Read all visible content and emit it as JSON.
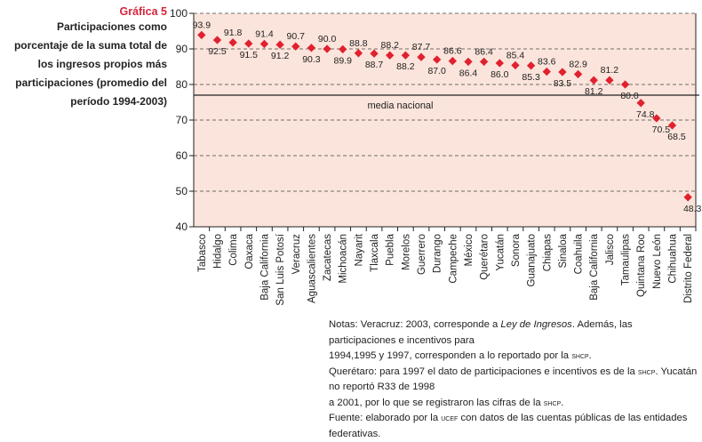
{
  "figure_label": "Gráfica 5",
  "chart_data": {
    "type": "scatter",
    "title": "Participaciones como porcentaje de la suma total de los ingresos propios más participaciones (promedio del período 1994-2003)",
    "categories": [
      "Tabasco",
      "Hidalgo",
      "Colima",
      "Oaxaca",
      "Baja California",
      "San Luis Potosí",
      "Veracruz",
      "Aguascalientes",
      "Zacatecas",
      "Michoacán",
      "Nayarit",
      "Tlaxcala",
      "Puebla",
      "Morelos",
      "Guerrero",
      "Durango",
      "Campeche",
      "México",
      "Querétaro",
      "Yucatán",
      "Sonora",
      "Guanajuato",
      "Chiapas",
      "Sinaloa",
      "Coahuila",
      "Baja California",
      "Jalisco",
      "Tamaulipas",
      "Quintana Roo",
      "Nuevo León",
      "Chihuahua",
      "Distrito Federal"
    ],
    "values": [
      93.9,
      92.5,
      91.8,
      91.5,
      91.4,
      91.2,
      90.7,
      90.3,
      90.0,
      89.9,
      88.8,
      88.7,
      88.2,
      88.2,
      87.7,
      87.0,
      86.6,
      86.4,
      86.4,
      86.0,
      85.4,
      85.3,
      83.6,
      83.5,
      82.9,
      81.2,
      81.2,
      80.0,
      74.8,
      70.5,
      68.5,
      48.3
    ],
    "data_labels": [
      "93.9",
      "92.5",
      "91.8",
      "91.5",
      "91.4",
      "91.2",
      "90.7",
      "90.3",
      "90.0",
      "89.9",
      "88.8",
      "88.7",
      "88.2",
      "88.2",
      "87.7",
      "87.0",
      "86.6",
      "86.4",
      "86.4",
      "86.0",
      "85.4",
      "85.3",
      "83.6",
      "83.5",
      "82.9",
      "81.2",
      "81.2",
      "80.0",
      "74.8",
      "70.5",
      "68.5",
      "48.3"
    ],
    "ylim": [
      40,
      100
    ],
    "yticks": [
      "40",
      "50",
      "60",
      "70",
      "80",
      "90",
      "100"
    ],
    "grid": "horizontal dashed",
    "reference_line": {
      "label": "media nacional",
      "value": 77
    },
    "marker_color": "#e0212f",
    "background_color": "#fbe4db"
  },
  "notes": [
    [
      {
        "t": "Notas: Veracruz: 2003, corresponde a "
      },
      {
        "t": "Ley de Ingresos",
        "i": true
      },
      {
        "t": ". Además, las participaciones e incentivos para"
      }
    ],
    [
      {
        "t": "1994,1995 y 1997, corresponden a lo reportado por la "
      },
      {
        "t": "shcp",
        "sc": true
      },
      {
        "t": "."
      }
    ],
    [
      {
        "t": "Querétaro: para 1997 el dato de participaciones e incentivos es de la "
      },
      {
        "t": "shcp",
        "sc": true
      },
      {
        "t": ". Yucatán no reportó R33 de 1998"
      }
    ],
    [
      {
        "t": "a 2001, por lo que se registraron las cifras de la "
      },
      {
        "t": "shcp",
        "sc": true
      },
      {
        "t": "."
      }
    ],
    [
      {
        "t": "Fuente: elaborado por la "
      },
      {
        "t": "ucef",
        "sc": true
      },
      {
        "t": " con datos de las cuentas públicas de las entidades federativas."
      }
    ]
  ]
}
